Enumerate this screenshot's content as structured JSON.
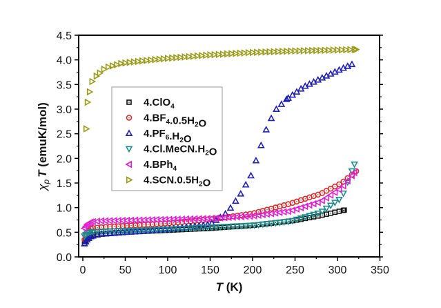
{
  "chart_data": {
    "type": "scatter",
    "title": "",
    "xlabel": {
      "italic": "T",
      "rest": " (K)"
    },
    "ylabel": {
      "symbol": "χ",
      "subscript": "p",
      "italic": "T",
      "rest": " (emuK/mol)"
    },
    "xlim": [
      -5,
      350
    ],
    "ylim": [
      0,
      4.5
    ],
    "xticks": [
      0,
      50,
      100,
      150,
      200,
      250,
      300,
      350
    ],
    "yticks": [
      0.0,
      0.5,
      1.0,
      1.5,
      2.0,
      2.5,
      3.0,
      3.5,
      4.0,
      4.5
    ],
    "xtick_labels": [
      "0",
      "50",
      "100",
      "150",
      "200",
      "250",
      "300",
      "350"
    ],
    "ytick_labels": [
      "0.0",
      "0.5",
      "1.0",
      "1.5",
      "2.0",
      "2.5",
      "3.0",
      "3.5",
      "4.0",
      "4.5"
    ],
    "grid": false,
    "legend_position": "upper-left-inside",
    "series": [
      {
        "name": "4.ClO4",
        "label_parts": [
          [
            "4.ClO",
            ""
          ],
          [
            "4",
            "sub"
          ]
        ],
        "marker": "square",
        "color": "#111111",
        "anchors": [
          [
            2,
            0.27
          ],
          [
            5,
            0.38
          ],
          [
            10,
            0.44
          ],
          [
            20,
            0.47
          ],
          [
            50,
            0.5
          ],
          [
            100,
            0.54
          ],
          [
            150,
            0.58
          ],
          [
            200,
            0.64
          ],
          [
            250,
            0.74
          ],
          [
            280,
            0.84
          ],
          [
            308,
            0.95
          ]
        ],
        "tmax": 308
      },
      {
        "name": "4.BF4.0.5H2O",
        "label_parts": [
          [
            "4.BF",
            ""
          ],
          [
            "4",
            "sub"
          ],
          [
            ".0.5H",
            ""
          ],
          [
            "2",
            "sub"
          ],
          [
            "O",
            ""
          ]
        ],
        "marker": "circle",
        "color": "#d42a2a",
        "anchors": [
          [
            2,
            0.35
          ],
          [
            5,
            0.5
          ],
          [
            10,
            0.58
          ],
          [
            20,
            0.6
          ],
          [
            50,
            0.63
          ],
          [
            100,
            0.68
          ],
          [
            150,
            0.76
          ],
          [
            200,
            0.88
          ],
          [
            244,
            1.08
          ],
          [
            280,
            1.28
          ],
          [
            305,
            1.5
          ],
          [
            322,
            1.74
          ]
        ],
        "tmax": 322
      },
      {
        "name": "4.PF6.H2O",
        "label_parts": [
          [
            "4.PF",
            ""
          ],
          [
            "6",
            "sub"
          ],
          [
            ".H",
            ""
          ],
          [
            "2",
            "sub"
          ],
          [
            "O",
            ""
          ]
        ],
        "marker": "triangle-up",
        "color": "#1f1fb4",
        "anchors": [
          [
            2,
            0.27
          ],
          [
            5,
            0.35
          ],
          [
            10,
            0.42
          ],
          [
            20,
            0.46
          ],
          [
            50,
            0.5
          ],
          [
            100,
            0.56
          ],
          [
            150,
            0.66
          ],
          [
            170,
            0.9
          ],
          [
            185,
            1.25
          ],
          [
            198,
            1.65
          ],
          [
            209,
            2.21
          ],
          [
            218,
            2.69
          ],
          [
            228,
            3.0
          ],
          [
            240,
            3.2
          ],
          [
            260,
            3.45
          ],
          [
            280,
            3.62
          ],
          [
            300,
            3.78
          ],
          [
            317,
            3.91
          ]
        ],
        "tmax": 317
      },
      {
        "name": "4.Cl.MeCN.H2O",
        "label_parts": [
          [
            "4.Cl.MeCN.H",
            ""
          ],
          [
            "2",
            "sub"
          ],
          [
            "O",
            ""
          ]
        ],
        "marker": "triangle-down",
        "color": "#1f8c8c",
        "anchors": [
          [
            2,
            0.42
          ],
          [
            5,
            0.48
          ],
          [
            10,
            0.51
          ],
          [
            20,
            0.52
          ],
          [
            50,
            0.53
          ],
          [
            100,
            0.56
          ],
          [
            150,
            0.6
          ],
          [
            200,
            0.64
          ],
          [
            244,
            0.72
          ],
          [
            280,
            0.9
          ],
          [
            305,
            1.2
          ],
          [
            320,
            1.88
          ]
        ],
        "tmax": 320
      },
      {
        "name": "4.BPh4",
        "label_parts": [
          [
            "4.BPh",
            ""
          ],
          [
            "4",
            "sub"
          ]
        ],
        "marker": "triangle-left",
        "color": "#e020d0",
        "anchors": [
          [
            2,
            0.58
          ],
          [
            5,
            0.66
          ],
          [
            10,
            0.71
          ],
          [
            20,
            0.73
          ],
          [
            50,
            0.74
          ],
          [
            100,
            0.76
          ],
          [
            150,
            0.78
          ],
          [
            200,
            0.83
          ],
          [
            244,
            0.93
          ],
          [
            280,
            1.12
          ],
          [
            305,
            1.4
          ],
          [
            320,
            1.71
          ]
        ],
        "tmax": 320
      },
      {
        "name": "4.SCN.0.5H2O",
        "label_parts": [
          [
            "4.SCN.0.5H",
            ""
          ],
          [
            "2",
            "sub"
          ],
          [
            "O",
            ""
          ]
        ],
        "marker": "triangle-right",
        "color": "#9a9a1a",
        "anchors": [
          [
            4,
            2.6
          ],
          [
            5.5,
            3.14
          ],
          [
            8,
            3.35
          ],
          [
            11,
            3.56
          ],
          [
            16,
            3.67
          ],
          [
            27,
            3.84
          ],
          [
            46,
            3.93
          ],
          [
            71,
            3.98
          ],
          [
            100,
            4.03
          ],
          [
            150,
            4.1
          ],
          [
            200,
            4.15
          ],
          [
            250,
            4.18
          ],
          [
            300,
            4.2
          ],
          [
            322,
            4.21
          ]
        ],
        "tmax": 322
      }
    ]
  }
}
